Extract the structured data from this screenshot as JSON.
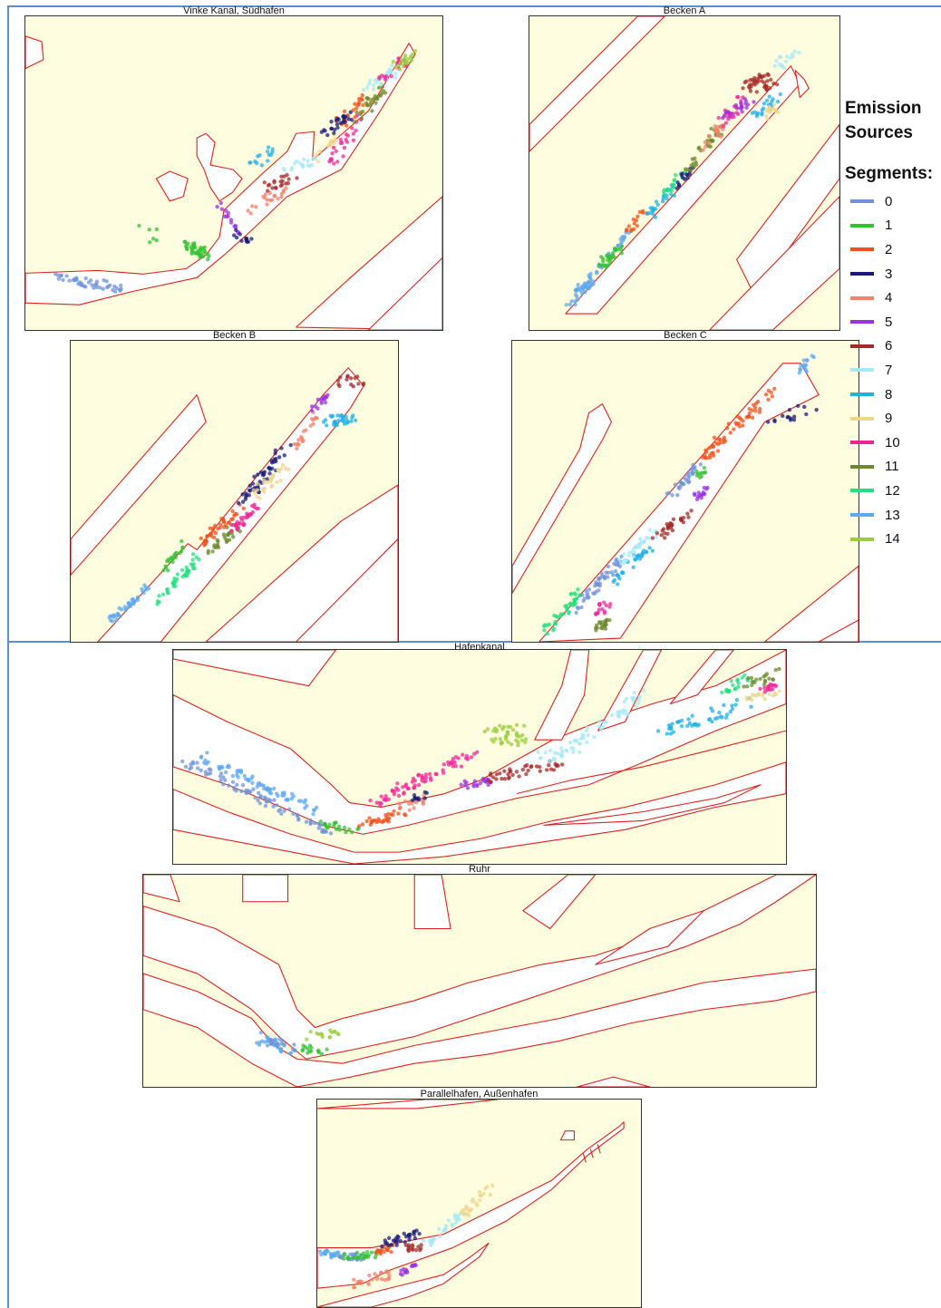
{
  "panels": [
    {
      "id": "p1",
      "title": "Vinke Kanal, Südhafen"
    },
    {
      "id": "p2",
      "title": "Becken A"
    },
    {
      "id": "p3",
      "title": "Becken B"
    },
    {
      "id": "p4",
      "title": "Becken C"
    },
    {
      "id": "p5",
      "title": "Hafenkanal"
    },
    {
      "id": "p6",
      "title": "Ruhr"
    },
    {
      "id": "p7",
      "title": "Parallelhafen, Außenhafen"
    }
  ],
  "legend": {
    "title_line1": "Emission",
    "title_line2": "Sources",
    "segments_label": "Segments:",
    "items": [
      {
        "label": "0",
        "color": "#6f93d9"
      },
      {
        "label": "1",
        "color": "#33c233"
      },
      {
        "label": "2",
        "color": "#f25018"
      },
      {
        "label": "3",
        "color": "#1a1a7a"
      },
      {
        "label": "4",
        "color": "#f2826a"
      },
      {
        "label": "5",
        "color": "#9b30e0"
      },
      {
        "label": "6",
        "color": "#a52a2a"
      },
      {
        "label": "7",
        "color": "#a6e8f7"
      },
      {
        "label": "8",
        "color": "#1fb0e8"
      },
      {
        "label": "9",
        "color": "#eed68c"
      },
      {
        "label": "10",
        "color": "#f0259a"
      },
      {
        "label": "11",
        "color": "#6b8a2a"
      },
      {
        "label": "12",
        "color": "#21e07e"
      },
      {
        "label": "13",
        "color": "#5ea8f0"
      },
      {
        "label": "14",
        "color": "#9acd3c"
      }
    ]
  },
  "style": {
    "land_color": "#fefde0",
    "boundary_color": "#e0201a",
    "separator_color": "#5b8fd4"
  }
}
